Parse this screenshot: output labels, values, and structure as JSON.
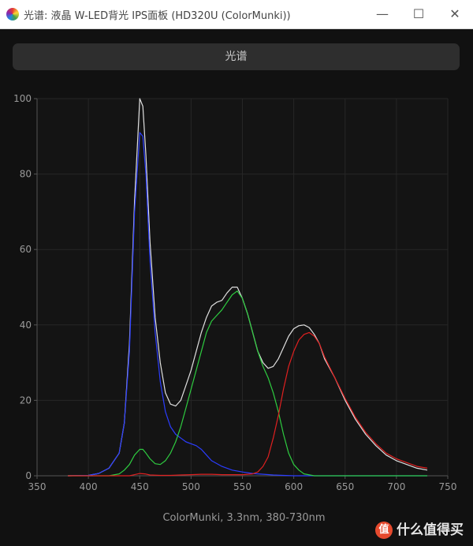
{
  "window": {
    "title": "光谱: 液晶 W-LED背光 IPS面板 (HD320U (ColorMunki))",
    "minimize_glyph": "—",
    "maximize_glyph": "☐",
    "close_glyph": "✕"
  },
  "tab_label": "光谱",
  "watermark": "什么值得买",
  "chart_data": {
    "type": "line",
    "xlabel": "ColorMunki, 3.3nm, 380-730nm",
    "ylabel": "",
    "xlim": [
      350,
      750
    ],
    "ylim": [
      0,
      100
    ],
    "xticks": [
      350,
      400,
      450,
      500,
      550,
      600,
      650,
      700,
      750
    ],
    "yticks": [
      0,
      20,
      40,
      60,
      80,
      100
    ],
    "grid": true,
    "series": [
      {
        "color": "#e0e0e0",
        "points": [
          [
            380,
            0
          ],
          [
            400,
            0.1
          ],
          [
            410,
            0.6
          ],
          [
            420,
            2
          ],
          [
            430,
            6
          ],
          [
            435,
            14
          ],
          [
            440,
            35
          ],
          [
            445,
            73
          ],
          [
            450,
            100
          ],
          [
            453,
            98
          ],
          [
            456,
            85
          ],
          [
            460,
            62
          ],
          [
            465,
            42
          ],
          [
            470,
            30
          ],
          [
            475,
            22
          ],
          [
            480,
            19
          ],
          [
            485,
            18.5
          ],
          [
            490,
            20
          ],
          [
            495,
            24
          ],
          [
            500,
            28
          ],
          [
            505,
            33
          ],
          [
            510,
            38
          ],
          [
            515,
            42
          ],
          [
            520,
            45
          ],
          [
            525,
            46
          ],
          [
            530,
            46.5
          ],
          [
            535,
            48.5
          ],
          [
            540,
            50
          ],
          [
            545,
            50
          ],
          [
            550,
            47
          ],
          [
            555,
            43
          ],
          [
            560,
            38
          ],
          [
            565,
            33
          ],
          [
            570,
            30
          ],
          [
            575,
            28.5
          ],
          [
            580,
            29
          ],
          [
            585,
            31
          ],
          [
            590,
            34
          ],
          [
            595,
            37
          ],
          [
            600,
            39
          ],
          [
            605,
            39.8
          ],
          [
            610,
            40
          ],
          [
            615,
            39.3
          ],
          [
            620,
            37.5
          ],
          [
            625,
            35
          ],
          [
            630,
            31
          ],
          [
            640,
            26
          ],
          [
            650,
            20
          ],
          [
            660,
            15
          ],
          [
            670,
            11
          ],
          [
            680,
            8
          ],
          [
            690,
            5.5
          ],
          [
            700,
            4
          ],
          [
            710,
            3
          ],
          [
            720,
            2
          ],
          [
            730,
            1.5
          ]
        ]
      },
      {
        "color": "#2b3dff",
        "points": [
          [
            380,
            0
          ],
          [
            400,
            0.1
          ],
          [
            410,
            0.6
          ],
          [
            420,
            2
          ],
          [
            430,
            6
          ],
          [
            435,
            14
          ],
          [
            440,
            33
          ],
          [
            445,
            70
          ],
          [
            450,
            91
          ],
          [
            453,
            90
          ],
          [
            456,
            80
          ],
          [
            460,
            57
          ],
          [
            465,
            38
          ],
          [
            470,
            25
          ],
          [
            475,
            17
          ],
          [
            480,
            13
          ],
          [
            485,
            11
          ],
          [
            490,
            10
          ],
          [
            495,
            9
          ],
          [
            500,
            8.5
          ],
          [
            505,
            8
          ],
          [
            510,
            7
          ],
          [
            515,
            5.5
          ],
          [
            520,
            4
          ],
          [
            530,
            2.5
          ],
          [
            540,
            1.5
          ],
          [
            550,
            1
          ],
          [
            560,
            0.6
          ],
          [
            580,
            0.2
          ],
          [
            600,
            0
          ],
          [
            730,
            0
          ]
        ]
      },
      {
        "color": "#2ecc40",
        "points": [
          [
            380,
            0
          ],
          [
            420,
            0
          ],
          [
            430,
            0.5
          ],
          [
            435,
            1.5
          ],
          [
            440,
            3
          ],
          [
            445,
            5.5
          ],
          [
            450,
            7
          ],
          [
            453,
            7
          ],
          [
            456,
            6
          ],
          [
            460,
            4.5
          ],
          [
            465,
            3.2
          ],
          [
            470,
            3
          ],
          [
            475,
            4
          ],
          [
            480,
            6
          ],
          [
            485,
            9
          ],
          [
            490,
            13
          ],
          [
            495,
            18
          ],
          [
            500,
            23
          ],
          [
            505,
            28
          ],
          [
            510,
            33
          ],
          [
            515,
            38
          ],
          [
            520,
            41
          ],
          [
            525,
            42.5
          ],
          [
            530,
            44
          ],
          [
            535,
            46
          ],
          [
            540,
            48
          ],
          [
            545,
            49
          ],
          [
            550,
            47
          ],
          [
            555,
            43
          ],
          [
            560,
            38
          ],
          [
            565,
            33
          ],
          [
            570,
            29
          ],
          [
            575,
            26
          ],
          [
            580,
            22
          ],
          [
            585,
            17
          ],
          [
            590,
            11
          ],
          [
            595,
            6
          ],
          [
            600,
            3
          ],
          [
            605,
            1.5
          ],
          [
            610,
            0.5
          ],
          [
            620,
            0
          ],
          [
            730,
            0
          ]
        ]
      },
      {
        "color": "#e02020",
        "points": [
          [
            380,
            0
          ],
          [
            440,
            0
          ],
          [
            445,
            0.3
          ],
          [
            450,
            0.6
          ],
          [
            455,
            0.5
          ],
          [
            460,
            0.2
          ],
          [
            470,
            0.1
          ],
          [
            480,
            0.1
          ],
          [
            490,
            0.2
          ],
          [
            500,
            0.3
          ],
          [
            510,
            0.4
          ],
          [
            520,
            0.4
          ],
          [
            530,
            0.3
          ],
          [
            540,
            0.3
          ],
          [
            550,
            0.3
          ],
          [
            560,
            0.5
          ],
          [
            565,
            1
          ],
          [
            570,
            2.5
          ],
          [
            575,
            5
          ],
          [
            580,
            10
          ],
          [
            585,
            16
          ],
          [
            590,
            23
          ],
          [
            595,
            29
          ],
          [
            600,
            33
          ],
          [
            605,
            36
          ],
          [
            610,
            37.5
          ],
          [
            615,
            38
          ],
          [
            620,
            37
          ],
          [
            625,
            35
          ],
          [
            630,
            31.5
          ],
          [
            640,
            26
          ],
          [
            650,
            20.5
          ],
          [
            660,
            15.5
          ],
          [
            670,
            11.5
          ],
          [
            680,
            8.5
          ],
          [
            690,
            6
          ],
          [
            700,
            4.5
          ],
          [
            710,
            3.5
          ],
          [
            720,
            2.5
          ],
          [
            730,
            2
          ]
        ]
      }
    ]
  }
}
